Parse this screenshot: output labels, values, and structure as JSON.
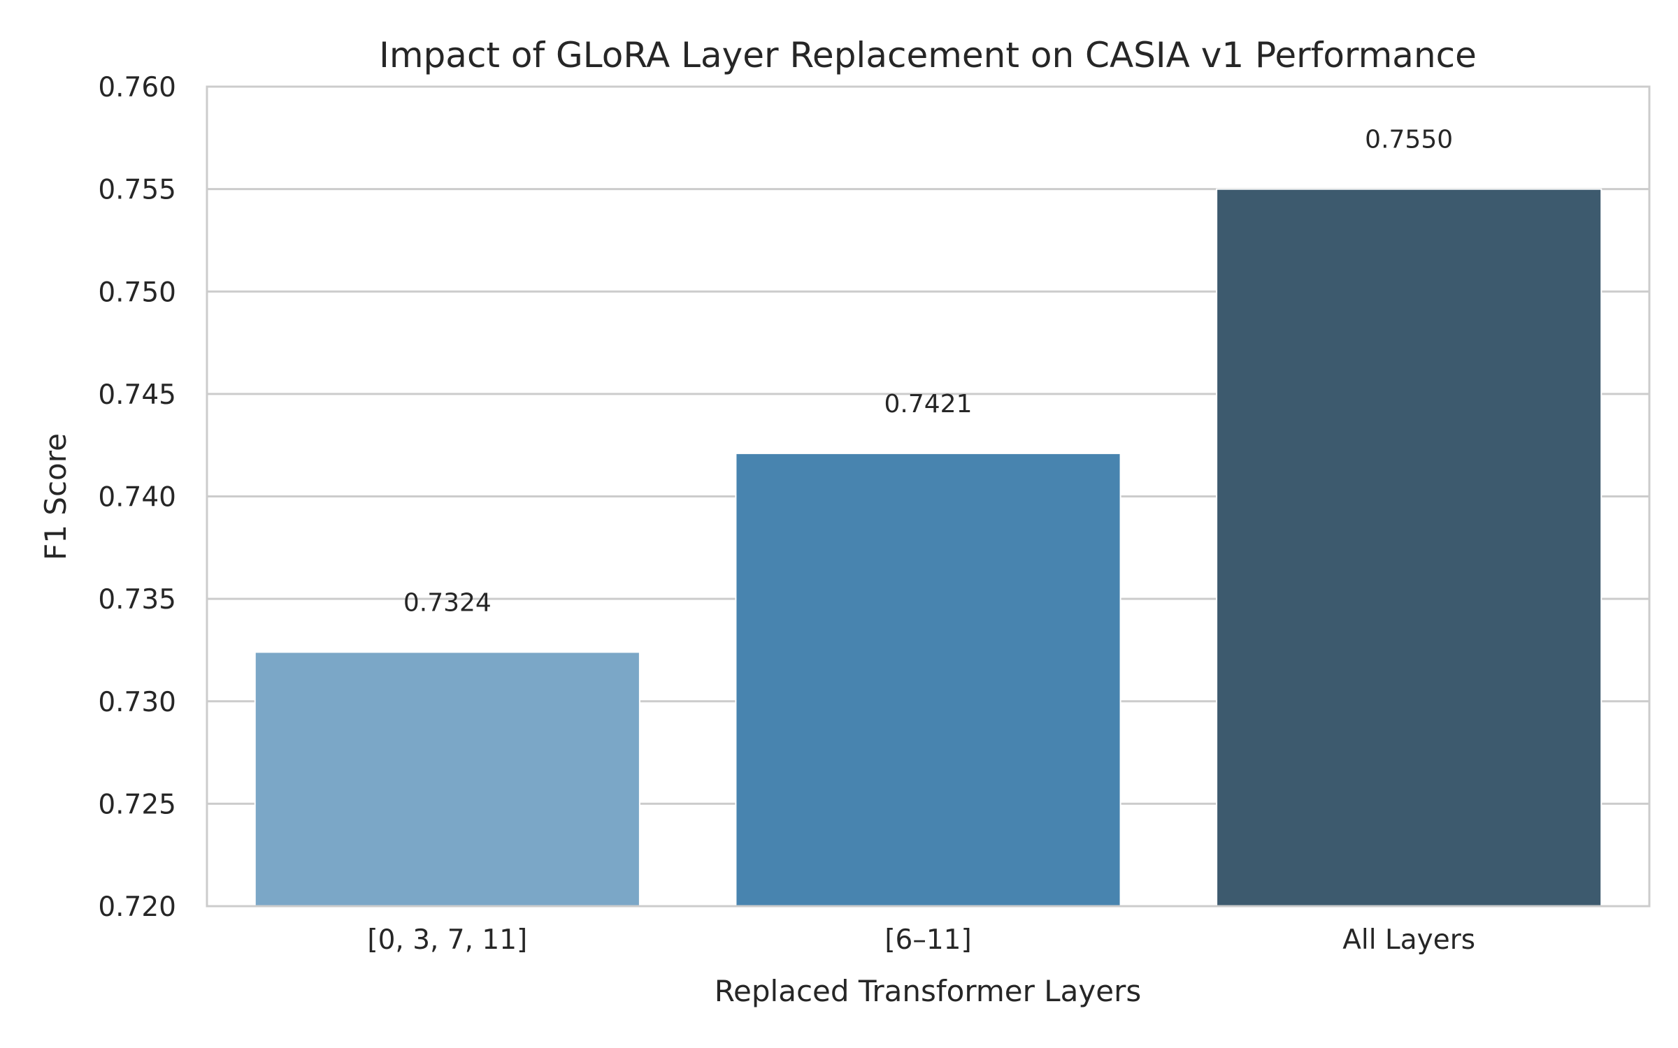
{
  "chart_data": {
    "type": "bar",
    "title": "Impact of GLoRA Layer Replacement on CASIA v1 Performance",
    "xlabel": "Replaced Transformer Layers",
    "ylabel": "F1 Score",
    "categories": [
      "[0, 3, 7, 11]",
      "[6–11]",
      "All Layers"
    ],
    "values": [
      0.7324,
      0.7421,
      0.755
    ],
    "value_labels": [
      "0.7324",
      "0.7421",
      "0.7550"
    ],
    "ylim": [
      0.72,
      0.76
    ],
    "yticks": [
      0.72,
      0.725,
      0.73,
      0.735,
      0.74,
      0.745,
      0.75,
      0.755,
      0.76
    ],
    "ytick_labels": [
      "0.720",
      "0.725",
      "0.730",
      "0.735",
      "0.740",
      "0.745",
      "0.750",
      "0.755",
      "0.760"
    ],
    "bar_colors": [
      "#7ba7c7",
      "#4884af",
      "#3d5a6e"
    ],
    "grid": "y",
    "legend": "none"
  }
}
